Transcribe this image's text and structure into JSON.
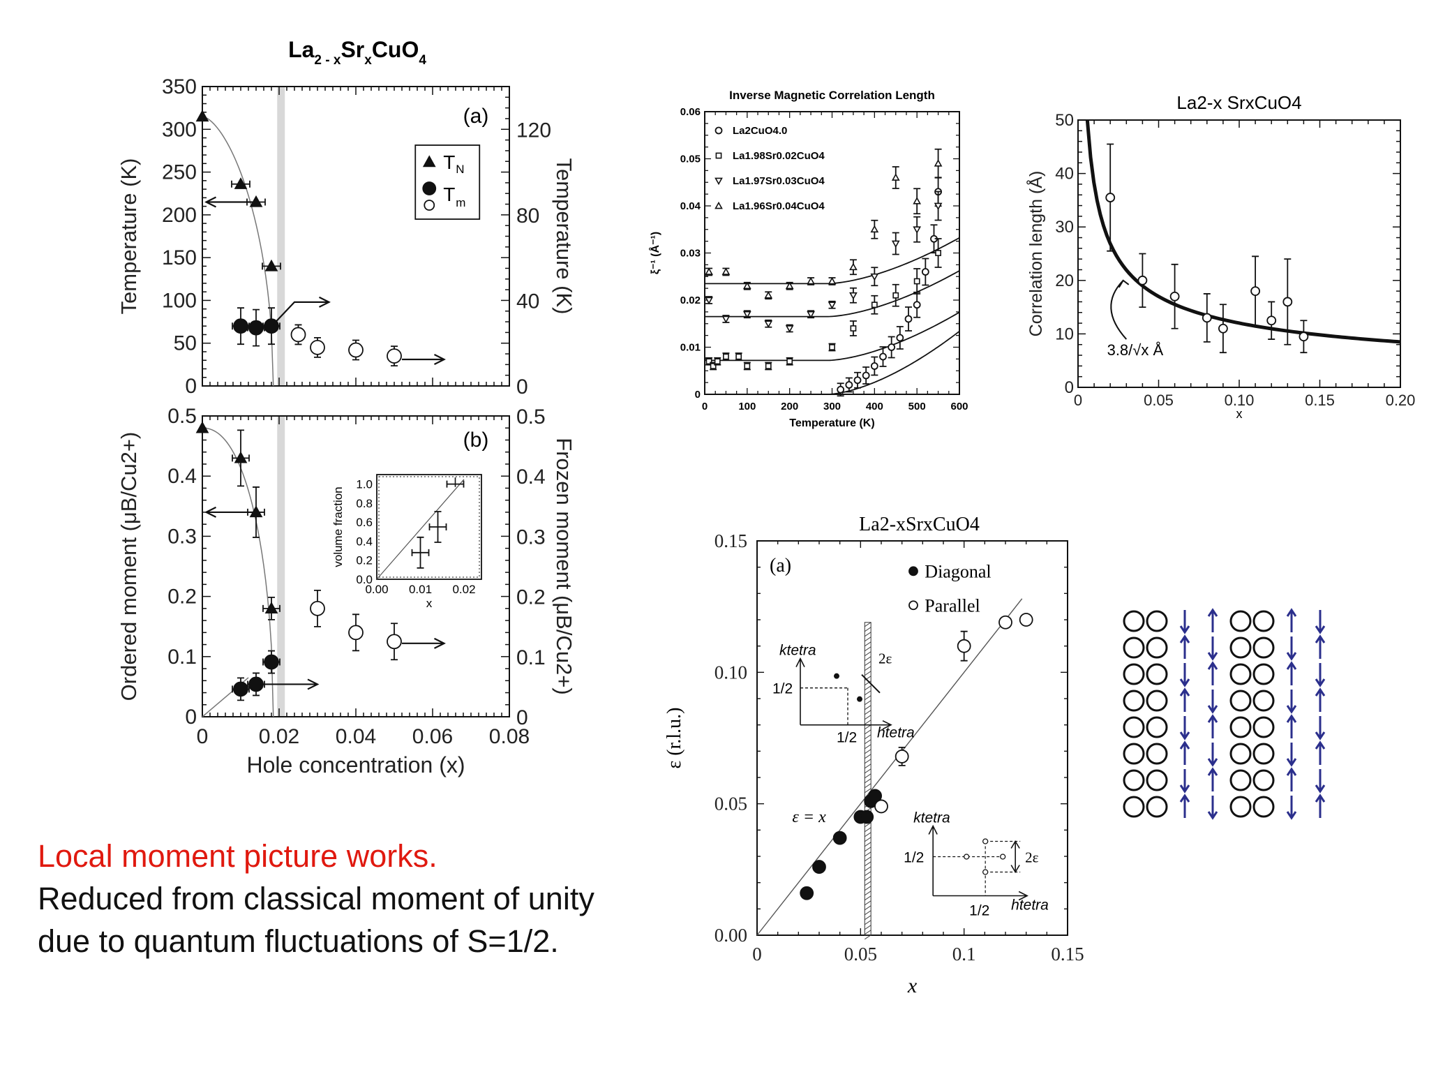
{
  "colors": {
    "accent_red": "#e0190f",
    "arrow_blue": "#2b2f8c",
    "ink": "#111111"
  },
  "chart_data": [
    {
      "id": "panel_a",
      "type": "scatter",
      "title": "La2-xSrxCuO4",
      "panel_label": "(a)",
      "xlim": [
        0,
        0.08
      ],
      "ylim": [
        0,
        350
      ],
      "y2lim": [
        0,
        140
      ],
      "ylabel": "Temperature (K)",
      "y2label": "Temperature (K)",
      "yticks": [
        "350",
        "300",
        "250",
        "200",
        "150",
        "100",
        "50",
        "0"
      ],
      "y2ticks": [
        "120",
        "80",
        "40",
        "0"
      ],
      "legend": {
        "position": "top-right",
        "entries": [
          "TN",
          "Tm"
        ]
      },
      "series": [
        {
          "name": "TN",
          "marker": "triangle",
          "x": [
            0,
            0.01,
            0.014,
            0.018
          ],
          "y": [
            315,
            236,
            215,
            140
          ]
        },
        {
          "name": "Tm",
          "marker": "filled-circle",
          "x": [
            0.01,
            0.014,
            0.018
          ],
          "y": [
            70,
            68,
            70
          ]
        },
        {
          "name": "Tm",
          "marker": "open-circle",
          "x": [
            0.025,
            0.03,
            0.04,
            0.05
          ],
          "y": [
            60,
            45,
            42,
            35
          ]
        }
      ]
    },
    {
      "id": "panel_b",
      "type": "scatter",
      "panel_label": "(b)",
      "xlim": [
        0,
        0.08
      ],
      "ylim": [
        0,
        0.5
      ],
      "xlabel": "Hole concentration (x)",
      "ylabel": "Ordered moment (μB/Cu2+)",
      "y2label": "Frozen moment (μB/Cu2+)",
      "xticks": [
        "0",
        "0.02",
        "0.04",
        "0.06",
        "0.08"
      ],
      "yticks": [
        "0.5",
        "0.4",
        "0.3",
        "0.2",
        "0.1",
        "0"
      ],
      "y2ticks": [
        "0.5",
        "0.4",
        "0.3",
        "0.2",
        "0.1",
        "0"
      ],
      "series": [
        {
          "name": "ordered",
          "marker": "triangle",
          "x": [
            0,
            0.01,
            0.014,
            0.018
          ],
          "y": [
            0.48,
            0.43,
            0.34,
            0.18
          ]
        },
        {
          "name": "frozen-filled",
          "marker": "filled-circle",
          "x": [
            0.01,
            0.014,
            0.018
          ],
          "y": [
            0.046,
            0.054,
            0.091
          ]
        },
        {
          "name": "frozen-open",
          "marker": "open-circle",
          "x": [
            0.03,
            0.04,
            0.05
          ],
          "y": [
            0.18,
            0.14,
            0.125
          ]
        }
      ],
      "inset": {
        "xlabel": "x",
        "ylabel": "volume fraction",
        "xticks": [
          "0.00",
          "0.01",
          "0.02"
        ],
        "yticks": [
          "1.0",
          "0.8",
          "0.6",
          "0.4",
          "0.2",
          "0.0"
        ],
        "x": [
          0.01,
          0.014,
          0.018
        ],
        "y": [
          0.28,
          0.55,
          1.0
        ]
      }
    },
    {
      "id": "inverse_corr",
      "type": "scatter",
      "title": "Inverse Magnetic Correlation Length",
      "xlabel": "Temperature (K)",
      "ylabel": "ξ⁻¹ (Å⁻¹)",
      "xlim": [
        0,
        600
      ],
      "ylim": [
        0,
        0.06
      ],
      "xticks": [
        "0",
        "100",
        "200",
        "300",
        "400",
        "500",
        "600"
      ],
      "yticks": [
        "0.06",
        "0.05",
        "0.04",
        "0.03",
        "0.02",
        "0.01",
        "0"
      ],
      "legend": {
        "position": "top-left",
        "entries": [
          "La2CuO4.0",
          "La1.98Sr0.02CuO4",
          "La1.97Sr0.03CuO4",
          "La1.96Sr0.04CuO4"
        ]
      },
      "series": [
        {
          "name": "La2CuO4.0",
          "marker": "circle",
          "x": [
            320,
            340,
            360,
            380,
            400,
            420,
            440,
            460,
            480,
            500,
            520,
            540,
            550
          ],
          "y": [
            0.001,
            0.002,
            0.003,
            0.004,
            0.006,
            0.008,
            0.01,
            0.012,
            0.016,
            0.019,
            0.026,
            0.033,
            0.043
          ]
        },
        {
          "name": "La1.98Sr0.02CuO4",
          "marker": "square",
          "x": [
            10,
            20,
            30,
            50,
            80,
            100,
            150,
            200,
            300,
            350,
            400,
            450,
            500,
            550
          ],
          "y": [
            0.007,
            0.006,
            0.007,
            0.008,
            0.008,
            0.006,
            0.006,
            0.007,
            0.01,
            0.014,
            0.019,
            0.021,
            0.024,
            0.03
          ]
        },
        {
          "name": "La1.97Sr0.03CuO4",
          "marker": "triangle-down",
          "x": [
            10,
            50,
            100,
            150,
            200,
            250,
            300,
            350,
            400,
            450,
            500,
            550
          ],
          "y": [
            0.02,
            0.016,
            0.017,
            0.015,
            0.014,
            0.017,
            0.019,
            0.021,
            0.025,
            0.032,
            0.035,
            0.04
          ]
        },
        {
          "name": "La1.96Sr0.04CuO4",
          "marker": "triangle-up",
          "x": [
            10,
            50,
            100,
            150,
            200,
            250,
            300,
            350,
            400,
            450,
            500,
            550
          ],
          "y": [
            0.026,
            0.026,
            0.023,
            0.021,
            0.023,
            0.024,
            0.024,
            0.027,
            0.035,
            0.046,
            0.041,
            0.049
          ]
        }
      ]
    },
    {
      "id": "corr_length",
      "type": "scatter",
      "title": "La2-x SrxCuO4",
      "xlabel": "x",
      "ylabel": "Correlation length (Å)",
      "xlim": [
        0,
        0.2
      ],
      "ylim": [
        0,
        50
      ],
      "xticks": [
        "0",
        "0.05",
        "0.10",
        "0.15",
        "0.20"
      ],
      "yticks": [
        "50",
        "40",
        "30",
        "20",
        "10",
        "0"
      ],
      "annotation": "3.8/√x Å",
      "x": [
        0.02,
        0.04,
        0.06,
        0.08,
        0.09,
        0.11,
        0.12,
        0.13,
        0.14
      ],
      "y": [
        35.5,
        20,
        17,
        13,
        11,
        18,
        12.5,
        16,
        9.5
      ]
    },
    {
      "id": "incommensurability",
      "type": "scatter",
      "title": "La2-xSrxCuO4",
      "panel_label": "(a)",
      "xlabel": "x",
      "ylabel": "ε (r.l.u.)",
      "xlim": [
        0,
        0.15
      ],
      "ylim": [
        0,
        0.15
      ],
      "xticks": [
        "0",
        "0.05",
        "0.1",
        "0.15"
      ],
      "yticks": [
        "0.15",
        "0.10",
        "0.05",
        "0.00"
      ],
      "line_label": "ε = x",
      "legend": {
        "position": "top-right",
        "entries": [
          "Diagonal",
          "Parallel"
        ]
      },
      "series": [
        {
          "name": "Diagonal",
          "marker": "filled-circle",
          "x": [
            0.024,
            0.03,
            0.04,
            0.05,
            0.053,
            0.055,
            0.057
          ],
          "y": [
            0.016,
            0.026,
            0.037,
            0.045,
            0.045,
            0.051,
            0.053
          ]
        },
        {
          "name": "Parallel",
          "marker": "open-circle",
          "x": [
            0.06,
            0.07,
            0.1,
            0.12,
            0.13
          ],
          "y": [
            0.049,
            0.068,
            0.11,
            0.119,
            0.12
          ]
        }
      ],
      "inset_labels": {
        "k": "ktetra",
        "h": "htetra",
        "half": "1/2",
        "two_eps": "2ε"
      }
    }
  ],
  "caption": {
    "line1": "Local moment picture works.",
    "line2": "Reduced from classical moment of unity due to quantum fluctuations of S=1/2."
  }
}
